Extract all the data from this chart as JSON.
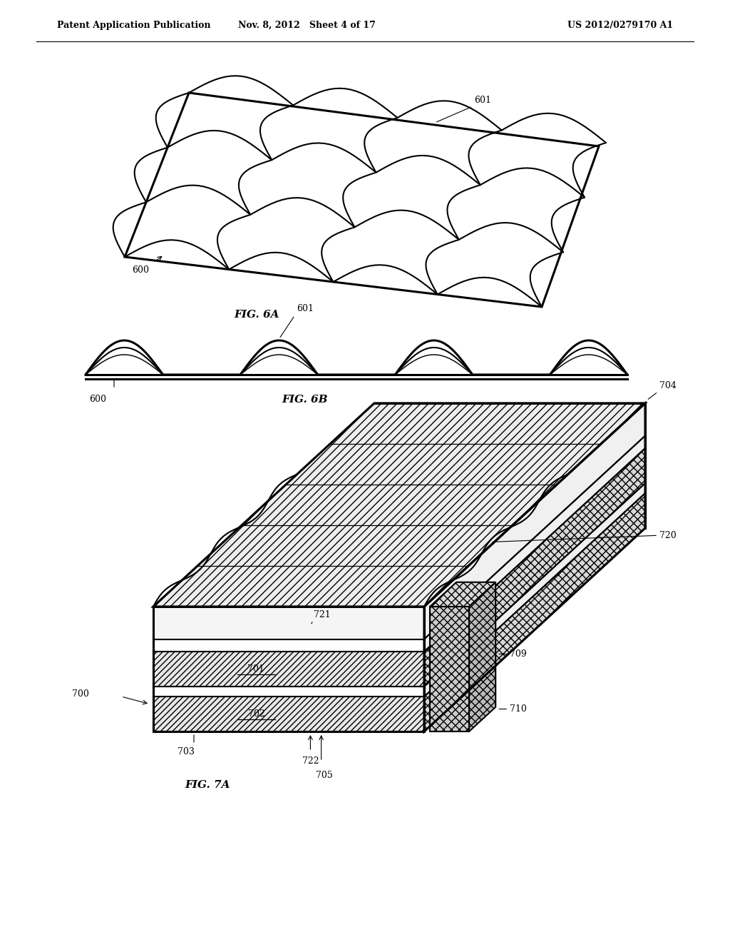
{
  "header_left": "Patent Application Publication",
  "header_mid": "Nov. 8, 2012   Sheet 4 of 17",
  "header_right": "US 2012/0279170 A1",
  "fig6a_label": "FIG. 6A",
  "fig6b_label": "FIG. 6B",
  "fig7a_label": "FIG. 7A",
  "ref_600_6a": "600",
  "ref_601_6a": "601",
  "ref_600_6b": "600",
  "ref_601_6b": "601",
  "ref_700": "700",
  "ref_701": "701",
  "ref_702": "702",
  "ref_703": "703",
  "ref_704": "704",
  "ref_705": "705",
  "ref_709": "709",
  "ref_710": "710",
  "ref_720": "720",
  "ref_721": "721",
  "ref_722": "722",
  "line_color": "#000000",
  "bg_color": "#ffffff",
  "lw": 1.5,
  "lw_thick": 2.2
}
